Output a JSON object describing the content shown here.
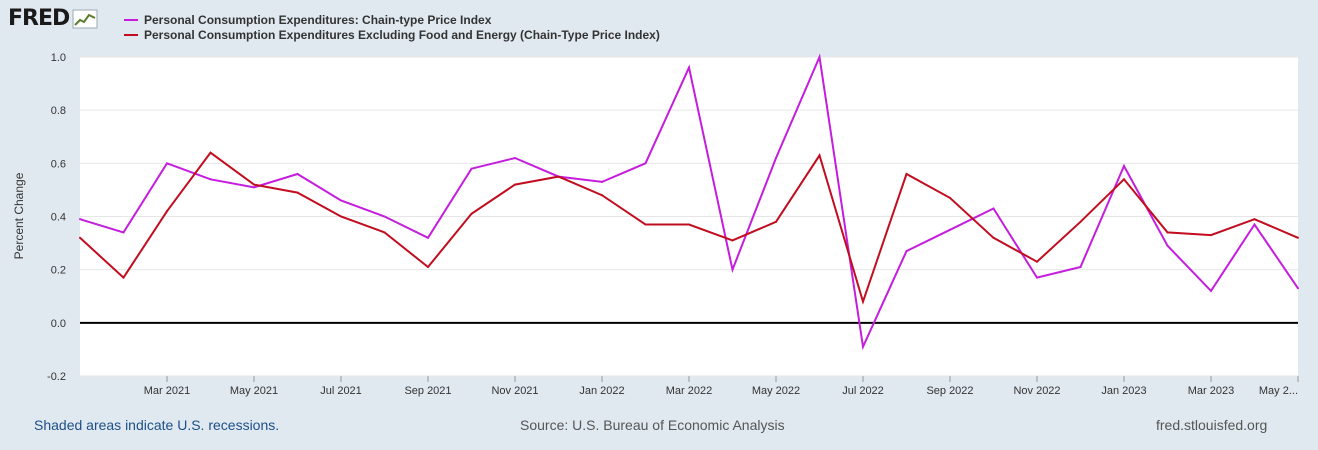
{
  "logo": {
    "text": "FRED",
    "icon": "fred-chart-icon"
  },
  "legend": [
    {
      "label": "Personal Consumption Expenditures: Chain-type Price Index",
      "color": "#c51ddd"
    },
    {
      "label": "Personal Consumption Expenditures Excluding Food and Energy (Chain-Type Price Index)",
      "color": "#c10d1f"
    }
  ],
  "footer": {
    "recessions": "Shaded areas indicate U.S. recessions.",
    "source": "Source: U.S. Bureau of Economic Analysis",
    "site": "fred.stlouisfed.org"
  },
  "chart_data": {
    "type": "line",
    "ylabel": "Percent Change",
    "ylim": [
      -0.2,
      1.0
    ],
    "yticks": [
      "1.0",
      "0.8",
      "0.6",
      "0.4",
      "0.2",
      "0.0",
      "-0.2"
    ],
    "x": [
      "2021-01",
      "2021-02",
      "2021-03",
      "2021-04",
      "2021-05",
      "2021-06",
      "2021-07",
      "2021-08",
      "2021-09",
      "2021-10",
      "2021-11",
      "2021-12",
      "2022-01",
      "2022-02",
      "2022-03",
      "2022-04",
      "2022-05",
      "2022-06",
      "2022-07",
      "2022-08",
      "2022-09",
      "2022-10",
      "2022-11",
      "2022-12",
      "2023-01",
      "2023-02",
      "2023-03",
      "2023-04",
      "2023-05"
    ],
    "xticks": [
      {
        "index": 2,
        "label": "Mar 2021"
      },
      {
        "index": 4,
        "label": "May 2021"
      },
      {
        "index": 6,
        "label": "Jul 2021"
      },
      {
        "index": 8,
        "label": "Sep 2021"
      },
      {
        "index": 10,
        "label": "Nov 2021"
      },
      {
        "index": 12,
        "label": "Jan 2022"
      },
      {
        "index": 14,
        "label": "Mar 2022"
      },
      {
        "index": 16,
        "label": "May 2022"
      },
      {
        "index": 18,
        "label": "Jul 2022"
      },
      {
        "index": 20,
        "label": "Sep 2022"
      },
      {
        "index": 22,
        "label": "Nov 2022"
      },
      {
        "index": 24,
        "label": "Jan 2023"
      },
      {
        "index": 26,
        "label": "Mar 2023"
      },
      {
        "index": 28,
        "label": "May 2..."
      }
    ],
    "series": [
      {
        "name": "Personal Consumption Expenditures: Chain-type Price Index",
        "color": "#c51ddd",
        "values": [
          0.39,
          0.34,
          0.6,
          0.54,
          0.51,
          0.56,
          0.46,
          0.4,
          0.32,
          0.58,
          0.62,
          0.55,
          0.53,
          0.6,
          0.96,
          0.2,
          0.62,
          1.0,
          -0.09,
          0.27,
          0.35,
          0.43,
          0.17,
          0.21,
          0.59,
          0.29,
          0.12,
          0.37,
          0.13
        ]
      },
      {
        "name": "Personal Consumption Expenditures Excluding Food and Energy (Chain-Type Price Index)",
        "color": "#c10d1f",
        "values": [
          0.32,
          0.17,
          0.42,
          0.64,
          0.52,
          0.49,
          0.4,
          0.34,
          0.21,
          0.41,
          0.52,
          0.55,
          0.48,
          0.37,
          0.37,
          0.31,
          0.38,
          0.63,
          0.08,
          0.56,
          0.47,
          0.32,
          0.23,
          0.38,
          0.54,
          0.34,
          0.33,
          0.39,
          0.32
        ]
      }
    ]
  }
}
